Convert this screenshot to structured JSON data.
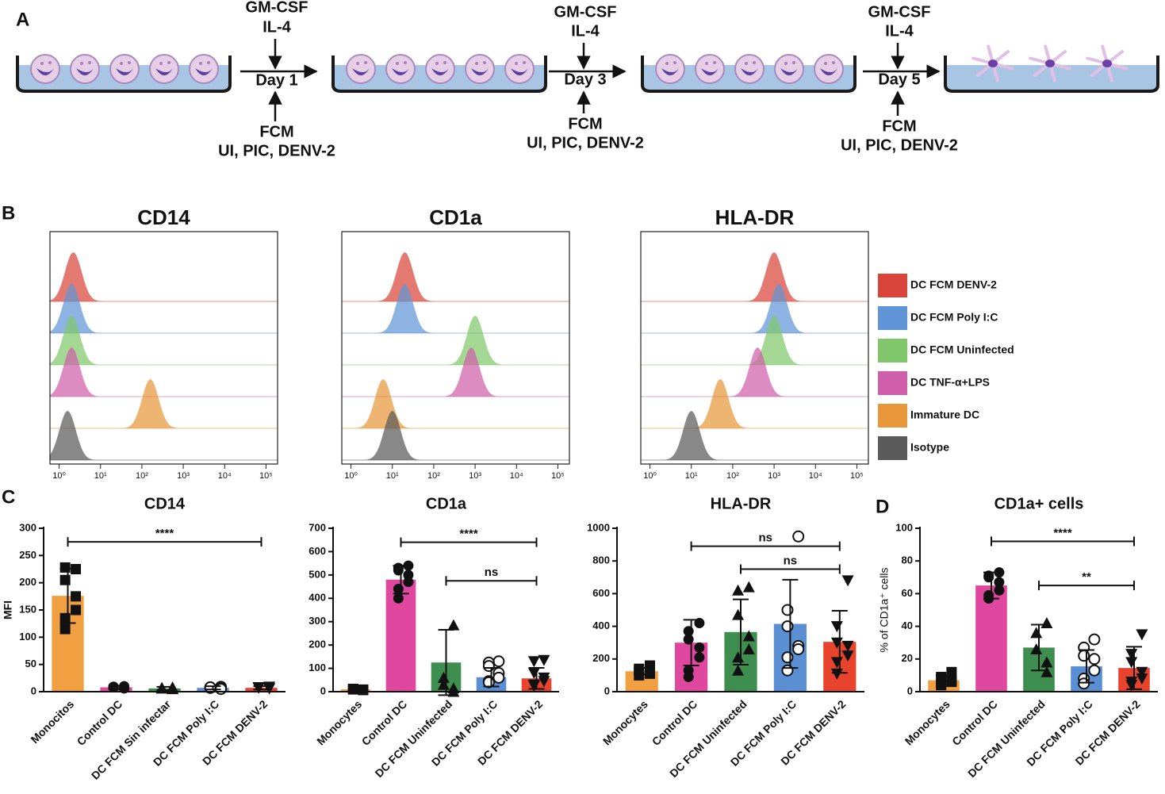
{
  "panel_a": {
    "label": "A",
    "steps": [
      {
        "top": [
          "GM-CSF",
          "IL-4"
        ],
        "day": "Day 1",
        "bottom": [
          "FCM",
          "UI, PIC, DENV-2"
        ]
      },
      {
        "top": [
          "GM-CSF",
          "IL-4"
        ],
        "day": "Day 3",
        "bottom": [
          "FCM",
          "UI, PIC, DENV-2"
        ]
      },
      {
        "top": [
          "GM-CSF",
          "IL-4"
        ],
        "day": "Day 5",
        "bottom": [
          "FCM",
          "UI, PIC, DENV-2"
        ]
      }
    ]
  },
  "panel_b": {
    "label": "B",
    "xscale": "log",
    "xlim": [
      0.6,
      190000
    ],
    "xticks": [
      {
        "value": 1,
        "label": "10⁰"
      },
      {
        "value": 10,
        "label": "10¹"
      },
      {
        "value": 100,
        "label": "10²"
      },
      {
        "value": 1000,
        "label": "10³"
      },
      {
        "value": 10000,
        "label": "10⁴"
      },
      {
        "value": 100000,
        "label": "10⁵"
      }
    ],
    "series": [
      {
        "name": "DC FCM DENV-2",
        "color": "#d9453a"
      },
      {
        "name": "DC FCM Poly I:C",
        "color": "#5f95d6"
      },
      {
        "name": "DC FCM Uninfected",
        "color": "#7fc76a"
      },
      {
        "name": "DC TNF-α+LPS",
        "color": "#d05fab"
      },
      {
        "name": "Immature DC",
        "color": "#e8973a"
      },
      {
        "name": "Isotype",
        "color": "#5a5a5a"
      }
    ],
    "histograms": [
      {
        "title": "CD14",
        "modes": [
          2.2,
          2,
          2,
          2,
          160,
          1.6
        ]
      },
      {
        "title": "CD1a",
        "modes": [
          20,
          20,
          1000,
          800,
          6,
          10
        ]
      },
      {
        "title": "HLA-DR",
        "modes": [
          1000,
          1300,
          1000,
          400,
          50,
          10
        ]
      }
    ]
  },
  "panel_labels": [
    "C",
    "D"
  ],
  "chart_data": [
    {
      "type": "bar",
      "title": "CD14",
      "ylabel": "MFI",
      "categories": [
        "Monocitos",
        "Control DC",
        "DC FCM Sin infectar",
        "DC FCM Poly I:C",
        "DC FCM DENV-2"
      ],
      "colors": [
        "#f0a040",
        "#e0479e",
        "#3e8e4f",
        "#5b8fd4",
        "#e8442d"
      ],
      "markers": [
        "square",
        "circle",
        "triangle",
        "open-circle",
        "inverted-triangle"
      ],
      "values": [
        176,
        8,
        6,
        7,
        7
      ],
      "errors": [
        50,
        3,
        3,
        3,
        3
      ],
      "points": [
        [
          225,
          228,
          205,
          175,
          150,
          135,
          115
        ],
        [
          10,
          9,
          8,
          7,
          6,
          8,
          9
        ],
        [
          8,
          7,
          6,
          5,
          6,
          7
        ],
        [
          9,
          8,
          7,
          6,
          5,
          7,
          8
        ],
        [
          9,
          8,
          7,
          6,
          6,
          7,
          8
        ]
      ],
      "ylim": [
        0,
        300
      ],
      "yticks": [
        0,
        50,
        100,
        150,
        200,
        250,
        300
      ],
      "annotations": [
        {
          "text": "****",
          "from": 0,
          "to": 4,
          "y": 275
        }
      ]
    },
    {
      "type": "bar",
      "title": "CD1a",
      "categories": [
        "Monocytes",
        "Control DC",
        "DC FCM Uninfected",
        "DC FCM Poly I:C",
        "DC FCM DENV-2"
      ],
      "colors": [
        "#f0a040",
        "#e0479e",
        "#3e8e4f",
        "#5b8fd4",
        "#e8442d"
      ],
      "markers": [
        "square",
        "circle",
        "triangle",
        "open-circle",
        "inverted-triangle"
      ],
      "values": [
        10,
        480,
        125,
        62,
        57
      ],
      "errors": [
        5,
        60,
        140,
        40,
        45
      ],
      "points": [
        [
          8,
          10,
          12,
          9,
          7,
          11,
          10
        ],
        [
          540,
          530,
          520,
          500,
          470,
          440,
          400
        ],
        [
          285,
          60,
          30,
          15,
          0
        ],
        [
          130,
          125,
          110,
          80,
          60,
          45,
          40
        ],
        [
          135,
          130,
          80,
          60,
          45,
          30,
          25
        ]
      ],
      "ylim": [
        0,
        700
      ],
      "yticks": [
        0,
        100,
        200,
        300,
        400,
        500,
        600,
        700
      ],
      "annotations": [
        {
          "text": "****",
          "from": 1,
          "to": 4,
          "y": 640
        },
        {
          "text": "ns",
          "from": 2,
          "to": 4,
          "y": 475
        }
      ]
    },
    {
      "type": "bar",
      "title": "HLA-DR",
      "categories": [
        "Monocytes",
        "Control DC",
        "DC FCM Uninfected",
        "DC FCM Poly I:C",
        "DC FCM DENV-2"
      ],
      "colors": [
        "#f0a040",
        "#e0479e",
        "#3e8e4f",
        "#5b8fd4",
        "#e8442d"
      ],
      "markers": [
        "square",
        "circle",
        "triangle",
        "open-circle",
        "inverted-triangle"
      ],
      "values": [
        125,
        300,
        365,
        415,
        305
      ],
      "errors": [
        20,
        140,
        200,
        270,
        190
      ],
      "points": [
        [
          160,
          140,
          130,
          120,
          110,
          100
        ],
        [
          420,
          370,
          320,
          270,
          210,
          130,
          90
        ],
        [
          640,
          620,
          470,
          340,
          260,
          210,
          130
        ],
        [
          950,
          500,
          400,
          280,
          260,
          210,
          130
        ],
        [
          680,
          400,
          300,
          280,
          220,
          180,
          110
        ]
      ],
      "ylim": [
        0,
        1000
      ],
      "yticks": [
        0,
        200,
        400,
        600,
        800,
        1000
      ],
      "annotations": [
        {
          "text": "ns",
          "from": 1,
          "to": 4,
          "y": 890
        },
        {
          "text": "ns",
          "from": 2,
          "to": 4,
          "y": 750
        }
      ]
    },
    {
      "type": "bar",
      "title": "CD1a+ cells",
      "ylabel": "% of CD1a⁺ cells",
      "categories": [
        "Monocytes",
        "Control DC",
        "DC FCM Uninfected",
        "DC FCM Poly I:C",
        "DC FCM DENV-2"
      ],
      "colors": [
        "#f0a040",
        "#e0479e",
        "#3e8e4f",
        "#5b8fd4",
        "#e8442d"
      ],
      "markers": [
        "square",
        "circle",
        "triangle",
        "open-circle",
        "inverted-triangle"
      ],
      "values": [
        7,
        65,
        27,
        15.5,
        14.5
      ],
      "errors": [
        3,
        8,
        14,
        10,
        13
      ],
      "points": [
        [
          12,
          9,
          8,
          7,
          6,
          5,
          4
        ],
        [
          73,
          71,
          70,
          67,
          62,
          59,
          57
        ],
        [
          42,
          36,
          26,
          18,
          12
        ],
        [
          32,
          27,
          22,
          20,
          13,
          8,
          5
        ],
        [
          35,
          23,
          18,
          12,
          8,
          6,
          4
        ]
      ],
      "ylim": [
        0,
        100
      ],
      "yticks": [
        0,
        20,
        40,
        60,
        80,
        100
      ],
      "annotations": [
        {
          "text": "****",
          "from": 1,
          "to": 4,
          "y": 92
        },
        {
          "text": "**",
          "from": 2,
          "to": 4,
          "y": 65
        }
      ]
    }
  ]
}
